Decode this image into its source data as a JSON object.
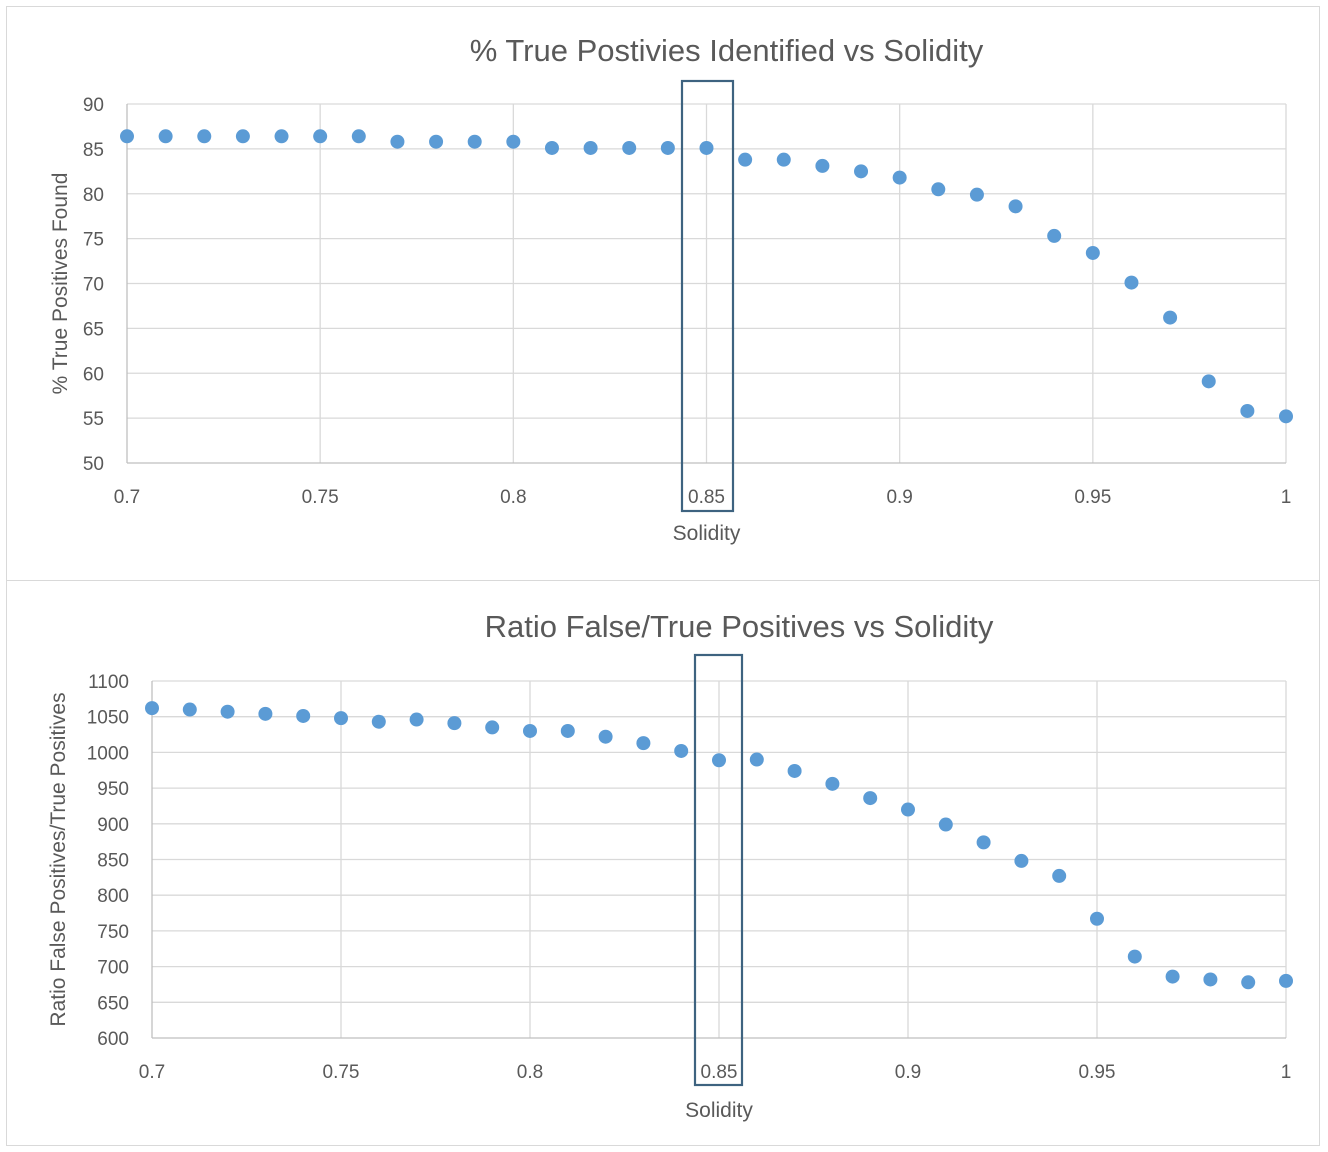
{
  "chart_data": [
    {
      "type": "scatter",
      "title": "% True Postivies Identified vs Solidity",
      "xlabel": "Solidity",
      "ylabel": "% True Positives Found",
      "xlim": [
        0.7,
        1
      ],
      "ylim": [
        50,
        90
      ],
      "xticks": [
        "0.7",
        "0.75",
        "0.8",
        "0.85",
        "0.9",
        "0.95",
        "1"
      ],
      "yticks": [
        "50",
        "55",
        "60",
        "65",
        "70",
        "75",
        "80",
        "85",
        "90"
      ],
      "grid": true,
      "highlight_x": 0.85,
      "color": "#5b9bd5",
      "x": [
        0.7,
        0.71,
        0.72,
        0.73,
        0.74,
        0.75,
        0.76,
        0.77,
        0.78,
        0.79,
        0.8,
        0.81,
        0.82,
        0.83,
        0.84,
        0.85,
        0.86,
        0.87,
        0.88,
        0.89,
        0.9,
        0.91,
        0.92,
        0.93,
        0.94,
        0.95,
        0.96,
        0.97,
        0.98,
        0.99,
        1.0
      ],
      "y": [
        86.4,
        86.4,
        86.4,
        86.4,
        86.4,
        86.4,
        86.4,
        85.8,
        85.8,
        85.8,
        85.8,
        85.1,
        85.1,
        85.1,
        85.1,
        85.1,
        83.8,
        83.8,
        83.1,
        82.5,
        81.8,
        80.5,
        79.9,
        78.6,
        75.3,
        73.4,
        70.1,
        66.2,
        59.1,
        55.8,
        55.2
      ]
    },
    {
      "type": "scatter",
      "title": "Ratio False/True Positives vs Solidity",
      "xlabel": "Solidity",
      "ylabel": "Ratio False Positives/True Positives",
      "xlim": [
        0.7,
        1
      ],
      "ylim": [
        600,
        1100
      ],
      "xticks": [
        "0.7",
        "0.75",
        "0.8",
        "0.85",
        "0.9",
        "0.95",
        "1"
      ],
      "yticks": [
        "600",
        "650",
        "700",
        "750",
        "800",
        "850",
        "900",
        "950",
        "1000",
        "1050",
        "1100"
      ],
      "grid": true,
      "highlight_x": 0.85,
      "color": "#5b9bd5",
      "x": [
        0.7,
        0.71,
        0.72,
        0.73,
        0.74,
        0.75,
        0.76,
        0.77,
        0.78,
        0.79,
        0.8,
        0.81,
        0.82,
        0.83,
        0.84,
        0.85,
        0.86,
        0.87,
        0.88,
        0.89,
        0.9,
        0.91,
        0.92,
        0.93,
        0.94,
        0.95,
        0.96,
        0.97,
        0.98,
        0.99,
        1.0
      ],
      "y": [
        1062,
        1060,
        1057,
        1054,
        1051,
        1048,
        1043,
        1046,
        1041,
        1035,
        1030,
        1030,
        1022,
        1013,
        1002,
        989,
        990,
        974,
        956,
        936,
        920,
        899,
        874,
        848,
        827,
        767,
        714,
        686,
        682,
        678,
        680
      ]
    }
  ]
}
